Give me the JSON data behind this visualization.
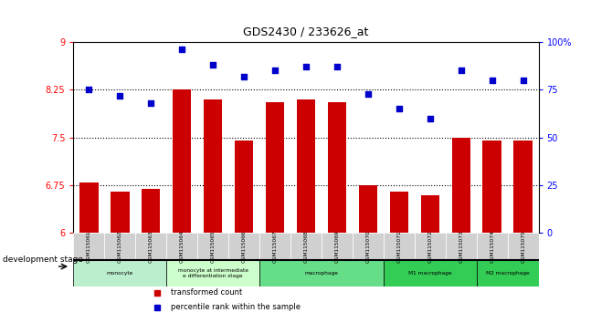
{
  "title": "GDS2430 / 233626_at",
  "categories": [
    "GSM115061",
    "GSM115062",
    "GSM115063",
    "GSM115064",
    "GSM115065",
    "GSM115066",
    "GSM115067",
    "GSM115068",
    "GSM115069",
    "GSM115070",
    "GSM115071",
    "GSM115072",
    "GSM115073",
    "GSM115074",
    "GSM115075"
  ],
  "bar_values": [
    6.8,
    6.65,
    6.7,
    8.25,
    8.1,
    7.45,
    8.05,
    8.1,
    8.05,
    6.75,
    6.65,
    6.6,
    7.5,
    7.45,
    7.45
  ],
  "scatter_values": [
    75,
    72,
    68,
    96,
    88,
    82,
    85,
    87,
    87,
    73,
    65,
    60,
    85,
    80,
    80
  ],
  "ylim_left": [
    6,
    9
  ],
  "ylim_right": [
    0,
    100
  ],
  "yticks_left": [
    6,
    6.75,
    7.5,
    8.25,
    9
  ],
  "ytick_labels_left": [
    "6",
    "6.75",
    "7.5",
    "8.25",
    "9"
  ],
  "yticks_right": [
    0,
    25,
    50,
    75,
    100
  ],
  "ytick_labels_right": [
    "0",
    "25",
    "50",
    "75",
    "100%"
  ],
  "bar_color": "#cc0000",
  "scatter_color": "#0000cc",
  "dotted_line_values": [
    6.75,
    7.5,
    8.25
  ],
  "legend_items": [
    {
      "label": "transformed count",
      "color": "#cc0000"
    },
    {
      "label": "percentile rank within the sample",
      "color": "#0000cc"
    }
  ],
  "dev_stage_label": "development stage",
  "background_color": "#ffffff",
  "stage_groups": [
    {
      "label": "monocyte",
      "start": 0,
      "end": 2,
      "color": "#bbeecc"
    },
    {
      "label": "monocyte at intermediate\ne differentiation stage",
      "start": 3,
      "end": 5,
      "color": "#ccffcc"
    },
    {
      "label": "macrophage",
      "start": 6,
      "end": 9,
      "color": "#66dd88"
    },
    {
      "label": "M1 macrophage",
      "start": 10,
      "end": 12,
      "color": "#33cc55"
    },
    {
      "label": "M2 macrophage",
      "start": 13,
      "end": 14,
      "color": "#33cc55"
    }
  ]
}
